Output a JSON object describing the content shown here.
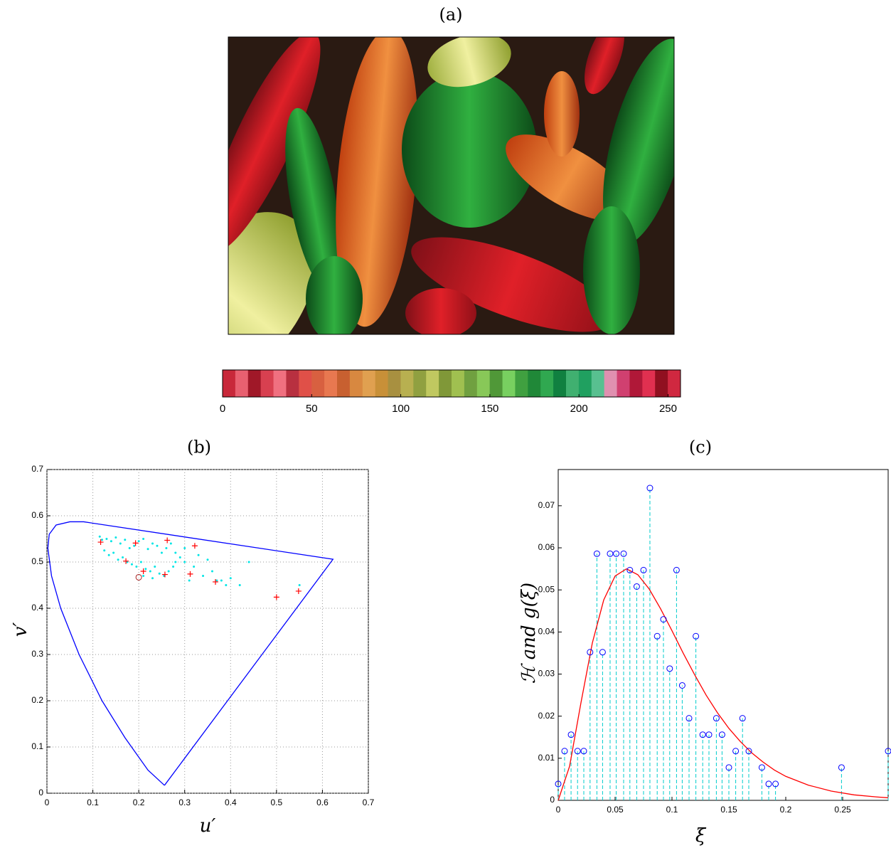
{
  "chart_data": [
    {
      "type": "colorbar",
      "title": "(a)",
      "colors": [
        "#c8283a",
        "#e86070",
        "#a01828",
        "#d84050",
        "#f07080",
        "#b83040",
        "#e05048",
        "#d86040",
        "#e87850",
        "#c86030",
        "#d88840",
        "#e0a050",
        "#c89038",
        "#a89040",
        "#b8b050",
        "#90a040",
        "#c0c860",
        "#809838",
        "#a0c050",
        "#70a040",
        "#88c858",
        "#509838",
        "#78d060",
        "#40a040",
        "#208838",
        "#30a850",
        "#108040",
        "#40b070",
        "#20a060",
        "#58c090",
        "#e090b0",
        "#d04070",
        "#b01838",
        "#e03050",
        "#901020",
        "#d02840"
      ],
      "xlim": [
        0,
        257
      ],
      "xticks": [
        0,
        50,
        100,
        150,
        200,
        250
      ]
    },
    {
      "type": "scatter",
      "title": "(b)",
      "xlabel": "u′",
      "ylabel": "v′",
      "xlim": [
        0,
        0.7
      ],
      "ylim": [
        0,
        0.7
      ],
      "xticks": [
        0,
        0.1,
        0.2,
        0.3,
        0.4,
        0.5,
        0.6,
        0.7
      ],
      "yticks": [
        0,
        0.1,
        0.2,
        0.3,
        0.4,
        0.5,
        0.6,
        0.7
      ],
      "grid": true,
      "series": [
        {
          "marker": "line",
          "color": "#0000ff",
          "x": [
            0.256,
            0.22,
            0.17,
            0.12,
            0.07,
            0.03,
            0.01,
            0.002,
            0.005,
            0.02,
            0.05,
            0.08,
            0.623,
            0.256
          ],
          "values": [
            0.017,
            0.05,
            0.12,
            0.2,
            0.3,
            0.4,
            0.47,
            0.53,
            0.56,
            0.58,
            0.587,
            0.587,
            0.506,
            0.017
          ]
        },
        {
          "marker": "dot",
          "color": "#00e5e5",
          "x": [
            0.115,
            0.12,
            0.13,
            0.14,
            0.15,
            0.16,
            0.17,
            0.18,
            0.19,
            0.2,
            0.21,
            0.22,
            0.23,
            0.24,
            0.25,
            0.26,
            0.27,
            0.28,
            0.29,
            0.3,
            0.125,
            0.135,
            0.145,
            0.155,
            0.165,
            0.175,
            0.185,
            0.195,
            0.205,
            0.215,
            0.225,
            0.235,
            0.245,
            0.255,
            0.265,
            0.275,
            0.3,
            0.32,
            0.34,
            0.36,
            0.38,
            0.4,
            0.42,
            0.44,
            0.33,
            0.35,
            0.37,
            0.39,
            0.55,
            0.31,
            0.28,
            0.23,
            0.21
          ],
          "values": [
            0.555,
            0.548,
            0.55,
            0.545,
            0.553,
            0.54,
            0.548,
            0.53,
            0.535,
            0.545,
            0.55,
            0.528,
            0.54,
            0.535,
            0.52,
            0.53,
            0.54,
            0.52,
            0.51,
            0.53,
            0.525,
            0.515,
            0.52,
            0.505,
            0.51,
            0.5,
            0.495,
            0.49,
            0.5,
            0.485,
            0.48,
            0.49,
            0.475,
            0.47,
            0.48,
            0.49,
            0.5,
            0.49,
            0.47,
            0.48,
            0.46,
            0.465,
            0.45,
            0.5,
            0.515,
            0.505,
            0.46,
            0.45,
            0.45,
            0.46,
            0.5,
            0.465,
            0.47
          ]
        },
        {
          "marker": "plus",
          "color": "#ff0000",
          "x": [
            0.117,
            0.193,
            0.262,
            0.322,
            0.172,
            0.21,
            0.257,
            0.312,
            0.367,
            0.5,
            0.548
          ],
          "values": [
            0.543,
            0.541,
            0.547,
            0.535,
            0.502,
            0.48,
            0.473,
            0.474,
            0.457,
            0.424,
            0.437
          ]
        },
        {
          "marker": "circle",
          "color": "#aa2222",
          "x": [
            0.2
          ],
          "values": [
            0.467
          ]
        }
      ]
    },
    {
      "type": "stem",
      "title": "(c)",
      "xlabel": "ξ",
      "ylabel": "ℋ and g(ξ)",
      "xlim": [
        0,
        0.29
      ],
      "ylim": [
        0,
        0.0786
      ],
      "xticks": [
        0,
        0.05,
        0.1,
        0.15,
        0.2,
        0.25
      ],
      "yticks": [
        0,
        0.01,
        0.02,
        0.03,
        0.04,
        0.05,
        0.06,
        0.07
      ],
      "grid": false,
      "color": "#0000ff",
      "stem_color": "#00cccc",
      "x": [
        0,
        0.0056,
        0.0113,
        0.017,
        0.0225,
        0.028,
        0.034,
        0.039,
        0.0456,
        0.051,
        0.0575,
        0.063,
        0.069,
        0.075,
        0.0806,
        0.087,
        0.0925,
        0.098,
        0.104,
        0.109,
        0.115,
        0.121,
        0.127,
        0.1325,
        0.139,
        0.144,
        0.15,
        0.156,
        0.162,
        0.1675,
        0.179,
        0.185,
        0.191,
        0.249,
        0.29
      ],
      "values": [
        0.0039,
        0.0117,
        0.0156,
        0.0117,
        0.0117,
        0.0352,
        0.0586,
        0.0352,
        0.0586,
        0.0586,
        0.0586,
        0.0547,
        0.0508,
        0.0547,
        0.0742,
        0.039,
        0.043,
        0.0313,
        0.0547,
        0.0273,
        0.0195,
        0.039,
        0.0156,
        0.0156,
        0.0195,
        0.0156,
        0.0078,
        0.0117,
        0.0195,
        0.0117,
        0.0078,
        0.0039,
        0.0039,
        0.0078,
        0.0117
      ],
      "curve": {
        "color": "#ff0000",
        "x": [
          0,
          0.01,
          0.02,
          0.03,
          0.04,
          0.05,
          0.06,
          0.07,
          0.08,
          0.09,
          0.1,
          0.11,
          0.12,
          0.13,
          0.14,
          0.15,
          0.16,
          0.17,
          0.18,
          0.19,
          0.2,
          0.22,
          0.24,
          0.26,
          0.28,
          0.29
        ],
        "values": [
          0,
          0.0081,
          0.0232,
          0.0374,
          0.0476,
          0.0533,
          0.055,
          0.0536,
          0.0502,
          0.0455,
          0.0403,
          0.0349,
          0.0298,
          0.025,
          0.0208,
          0.0171,
          0.014,
          0.0113,
          0.0091,
          0.0072,
          0.0057,
          0.0036,
          0.0022,
          0.0013,
          0.0008,
          0.0006
        ]
      }
    }
  ]
}
